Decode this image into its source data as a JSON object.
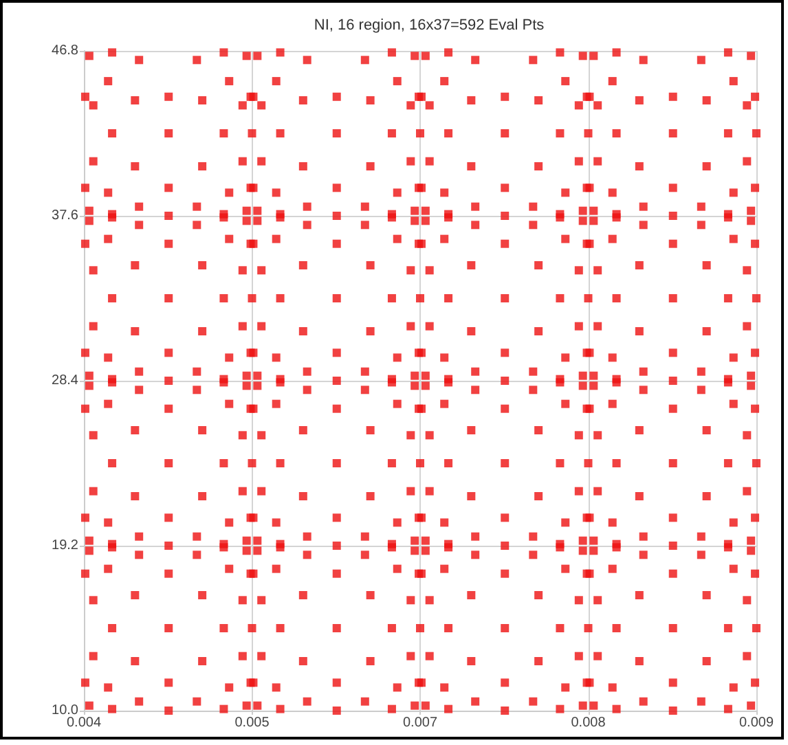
{
  "chart_data": {
    "type": "scatter",
    "title": "NI, 16 region, 16x37=592 Eval Pts",
    "marker": "square",
    "grid": true,
    "xlim": [
      0.004,
      0.009
    ],
    "xticks": [
      0.004,
      {
        "value": 0.00525,
        "label": "0.005"
      },
      {
        "value": 0.0065,
        "label": "0.007"
      },
      {
        "value": 0.00775,
        "label": "0.008"
      },
      0.009
    ],
    "ylim": [
      10,
      46.8
    ],
    "yticks": [
      {
        "value": 10,
        "label": "10.0"
      },
      19.2,
      28.4,
      37.6,
      46.8
    ],
    "series": [
      {
        "color": "#ee1111",
        "x": [
          0.00404,
          0.00521,
          0.00404,
          0.00521,
          0.00421,
          0.00504,
          0.00421,
          0.00504,
          0.00401,
          0.00401,
          0.00524,
          0.00524,
          0.00441,
          0.00484,
          0.00441,
          0.00484,
          0.00407,
          0.00407,
          0.00518,
          0.00518,
          0.00418,
          0.00508,
          0.00418,
          0.00508,
          0.00463,
          0.00463,
          0.00421,
          0.00504,
          0.00438,
          0.00488,
          0.00438,
          0.00488,
          0.00463,
          0.00463,
          0.00525,
          0.00529,
          0.00646,
          0.00529,
          0.00646,
          0.00546,
          0.00629,
          0.00546,
          0.00629,
          0.00526,
          0.00526,
          0.00649,
          0.00649,
          0.00566,
          0.00609,
          0.00566,
          0.00609,
          0.00532,
          0.00532,
          0.00643,
          0.00643,
          0.00543,
          0.00633,
          0.00543,
          0.00633,
          0.00588,
          0.00588,
          0.00546,
          0.00629,
          0.00563,
          0.00613,
          0.00563,
          0.00613,
          0.00588,
          0.00588,
          0.0065,
          0.00654,
          0.00771,
          0.00654,
          0.00771,
          0.00671,
          0.00754,
          0.00671,
          0.00754,
          0.00651,
          0.00651,
          0.00774,
          0.00774,
          0.00691,
          0.00734,
          0.00691,
          0.00734,
          0.00657,
          0.00657,
          0.00768,
          0.00768,
          0.00668,
          0.00758,
          0.00668,
          0.00758,
          0.00713,
          0.00713,
          0.00671,
          0.00754,
          0.00688,
          0.00738,
          0.00688,
          0.00738,
          0.00713,
          0.00713,
          0.00775,
          0.00779,
          0.00896,
          0.00779,
          0.00896,
          0.00796,
          0.00879,
          0.00796,
          0.00879,
          0.00776,
          0.00776,
          0.00899,
          0.00899,
          0.00816,
          0.00859,
          0.00816,
          0.00859,
          0.00782,
          0.00782,
          0.00893,
          0.00893,
          0.00793,
          0.00883,
          0.00793,
          0.00883,
          0.00838,
          0.00838,
          0.00796,
          0.00879,
          0.00813,
          0.00863,
          0.00813,
          0.00863,
          0.00838,
          0.00838,
          0.009,
          0.00404,
          0.00521,
          0.00404,
          0.00521,
          0.00421,
          0.00504,
          0.00421,
          0.00504,
          0.00401,
          0.00401,
          0.00524,
          0.00524,
          0.00441,
          0.00484,
          0.00441,
          0.00484,
          0.00407,
          0.00407,
          0.00518,
          0.00518,
          0.00418,
          0.00508,
          0.00418,
          0.00508,
          0.00463,
          0.00463,
          0.00421,
          0.00504,
          0.00438,
          0.00488,
          0.00438,
          0.00488,
          0.00463,
          0.00463,
          0.00525,
          0.00529,
          0.00646,
          0.00529,
          0.00646,
          0.00546,
          0.00629,
          0.00546,
          0.00629,
          0.00526,
          0.00526,
          0.00649,
          0.00649,
          0.00566,
          0.00609,
          0.00566,
          0.00609,
          0.00532,
          0.00532,
          0.00643,
          0.00643,
          0.00543,
          0.00633,
          0.00543,
          0.00633,
          0.00588,
          0.00588,
          0.00546,
          0.00629,
          0.00563,
          0.00613,
          0.00563,
          0.00613,
          0.00588,
          0.00588,
          0.0065,
          0.00654,
          0.00771,
          0.00654,
          0.00771,
          0.00671,
          0.00754,
          0.00671,
          0.00754,
          0.00651,
          0.00651,
          0.00774,
          0.00774,
          0.00691,
          0.00734,
          0.00691,
          0.00734,
          0.00657,
          0.00657,
          0.00768,
          0.00768,
          0.00668,
          0.00758,
          0.00668,
          0.00758,
          0.00713,
          0.00713,
          0.00671,
          0.00754,
          0.00688,
          0.00738,
          0.00688,
          0.00738,
          0.00713,
          0.00713,
          0.00775,
          0.00779,
          0.00896,
          0.00779,
          0.00896,
          0.00796,
          0.00879,
          0.00796,
          0.00879,
          0.00776,
          0.00776,
          0.00899,
          0.00899,
          0.00816,
          0.00859,
          0.00816,
          0.00859,
          0.00782,
          0.00782,
          0.00893,
          0.00893,
          0.00793,
          0.00883,
          0.00793,
          0.00883,
          0.00838,
          0.00838,
          0.00796,
          0.00879,
          0.00813,
          0.00863,
          0.00813,
          0.00863,
          0.00838,
          0.00838,
          0.009,
          0.00404,
          0.00521,
          0.00404,
          0.00521,
          0.00421,
          0.00504,
          0.00421,
          0.00504,
          0.00401,
          0.00401,
          0.00524,
          0.00524,
          0.00441,
          0.00484,
          0.00441,
          0.00484,
          0.00407,
          0.00407,
          0.00518,
          0.00518,
          0.00418,
          0.00508,
          0.00418,
          0.00508,
          0.00463,
          0.00463,
          0.00421,
          0.00504,
          0.00438,
          0.00488,
          0.00438,
          0.00488,
          0.00463,
          0.00463,
          0.00525,
          0.00529,
          0.00646,
          0.00529,
          0.00646,
          0.00546,
          0.00629,
          0.00546,
          0.00629,
          0.00526,
          0.00526,
          0.00649,
          0.00649,
          0.00566,
          0.00609,
          0.00566,
          0.00609,
          0.00532,
          0.00532,
          0.00643,
          0.00643,
          0.00543,
          0.00633,
          0.00543,
          0.00633,
          0.00588,
          0.00588,
          0.00546,
          0.00629,
          0.00563,
          0.00613,
          0.00563,
          0.00613,
          0.00588,
          0.00588,
          0.0065,
          0.00654,
          0.00771,
          0.00654,
          0.00771,
          0.00671,
          0.00754,
          0.00671,
          0.00754,
          0.00651,
          0.00651,
          0.00774,
          0.00774,
          0.00691,
          0.00734,
          0.00691,
          0.00734,
          0.00657,
          0.00657,
          0.00768,
          0.00768,
          0.00668,
          0.00758,
          0.00668,
          0.00758,
          0.00713,
          0.00713,
          0.00671,
          0.00754,
          0.00688,
          0.00738,
          0.00688,
          0.00738,
          0.00713,
          0.00713,
          0.00775,
          0.00779,
          0.00896,
          0.00779,
          0.00896,
          0.00796,
          0.00879,
          0.00796,
          0.00879,
          0.00776,
          0.00776,
          0.00899,
          0.00899,
          0.00816,
          0.00859,
          0.00816,
          0.00859,
          0.00782,
          0.00782,
          0.00893,
          0.00893,
          0.00793,
          0.00883,
          0.00793,
          0.00883,
          0.00838,
          0.00838,
          0.00796,
          0.00879,
          0.00813,
          0.00863,
          0.00813,
          0.00863,
          0.00838,
          0.00838,
          0.009,
          0.00404,
          0.00521,
          0.00404,
          0.00521,
          0.00421,
          0.00504,
          0.00421,
          0.00504,
          0.00401,
          0.00401,
          0.00524,
          0.00524,
          0.00441,
          0.00484,
          0.00441,
          0.00484,
          0.00407,
          0.00407,
          0.00518,
          0.00518,
          0.00418,
          0.00508,
          0.00418,
          0.00508,
          0.00463,
          0.00463,
          0.00421,
          0.00504,
          0.00438,
          0.00488,
          0.00438,
          0.00488,
          0.00463,
          0.00463,
          0.00525,
          0.00529,
          0.00646,
          0.00529,
          0.00646,
          0.00546,
          0.00629,
          0.00546,
          0.00629,
          0.00526,
          0.00526,
          0.00649,
          0.00649,
          0.00566,
          0.00609,
          0.00566,
          0.00609,
          0.00532,
          0.00532,
          0.00643,
          0.00643,
          0.00543,
          0.00633,
          0.00543,
          0.00633,
          0.00588,
          0.00588,
          0.00546,
          0.00629,
          0.00563,
          0.00613,
          0.00563,
          0.00613,
          0.00588,
          0.00588,
          0.0065,
          0.00654,
          0.00771,
          0.00654,
          0.00771,
          0.00671,
          0.00754,
          0.00671,
          0.00754,
          0.00651,
          0.00651,
          0.00774,
          0.00774,
          0.00691,
          0.00734,
          0.00691,
          0.00734,
          0.00657,
          0.00657,
          0.00768,
          0.00768,
          0.00668,
          0.00758,
          0.00668,
          0.00758,
          0.00713,
          0.00713,
          0.00671,
          0.00754,
          0.00688,
          0.00738,
          0.00688,
          0.00738,
          0.00713,
          0.00713,
          0.00775,
          0.00779,
          0.00896,
          0.00779,
          0.00896,
          0.00796,
          0.00879,
          0.00796,
          0.00879,
          0.00776,
          0.00776,
          0.00899,
          0.00899,
          0.00816,
          0.00859,
          0.00816,
          0.00859,
          0.00782,
          0.00782,
          0.00893,
          0.00893,
          0.00793,
          0.00883,
          0.00793,
          0.00883,
          0.00838,
          0.00838,
          0.00796,
          0.00879,
          0.00813,
          0.00863,
          0.00813,
          0.00863,
          0.00838,
          0.00838,
          0.009
        ],
        "values": [
          10.28,
          10.28,
          18.92,
          18.92,
          10.09,
          10.09,
          19.11,
          19.11,
          11.56,
          17.64,
          11.56,
          17.64,
          10.51,
          10.51,
          18.69,
          18.69,
          13.04,
          16.16,
          13.04,
          16.16,
          11.29,
          11.29,
          17.91,
          17.91,
          11.56,
          17.64,
          14.6,
          14.6,
          12.76,
          12.76,
          16.44,
          16.44,
          14.6,
          10,
          14.6,
          10.28,
          10.28,
          18.92,
          18.92,
          10.09,
          10.09,
          19.11,
          19.11,
          11.56,
          17.64,
          11.56,
          17.64,
          10.51,
          10.51,
          18.69,
          18.69,
          13.04,
          16.16,
          13.04,
          16.16,
          11.29,
          11.29,
          17.91,
          17.91,
          11.56,
          17.64,
          14.6,
          14.6,
          12.76,
          12.76,
          16.44,
          16.44,
          14.6,
          10,
          14.6,
          10.28,
          10.28,
          18.92,
          18.92,
          10.09,
          10.09,
          19.11,
          19.11,
          11.56,
          17.64,
          11.56,
          17.64,
          10.51,
          10.51,
          18.69,
          18.69,
          13.04,
          16.16,
          13.04,
          16.16,
          11.29,
          11.29,
          17.91,
          17.91,
          11.56,
          17.64,
          14.6,
          14.6,
          12.76,
          12.76,
          16.44,
          16.44,
          14.6,
          10,
          14.6,
          10.28,
          10.28,
          18.92,
          18.92,
          10.09,
          10.09,
          19.11,
          19.11,
          11.56,
          17.64,
          11.56,
          17.64,
          10.51,
          10.51,
          18.69,
          18.69,
          13.04,
          16.16,
          13.04,
          16.16,
          11.29,
          11.29,
          17.91,
          17.91,
          11.56,
          17.64,
          14.6,
          14.6,
          12.76,
          12.76,
          16.44,
          16.44,
          14.6,
          10,
          14.6,
          19.48,
          19.48,
          28.12,
          28.12,
          19.29,
          19.29,
          28.31,
          28.31,
          20.76,
          26.84,
          20.76,
          26.84,
          19.71,
          19.71,
          27.89,
          27.89,
          22.24,
          25.36,
          22.24,
          25.36,
          20.49,
          20.49,
          27.11,
          27.11,
          20.76,
          26.84,
          23.8,
          23.8,
          21.96,
          21.96,
          25.64,
          25.64,
          23.8,
          19.2,
          23.8,
          19.48,
          19.48,
          28.12,
          28.12,
          19.29,
          19.29,
          28.31,
          28.31,
          20.76,
          26.84,
          20.76,
          26.84,
          19.71,
          19.71,
          27.89,
          27.89,
          22.24,
          25.36,
          22.24,
          25.36,
          20.49,
          20.49,
          27.11,
          27.11,
          20.76,
          26.84,
          23.8,
          23.8,
          21.96,
          21.96,
          25.64,
          25.64,
          23.8,
          19.2,
          23.8,
          19.48,
          19.48,
          28.12,
          28.12,
          19.29,
          19.29,
          28.31,
          28.31,
          20.76,
          26.84,
          20.76,
          26.84,
          19.71,
          19.71,
          27.89,
          27.89,
          22.24,
          25.36,
          22.24,
          25.36,
          20.49,
          20.49,
          27.11,
          27.11,
          20.76,
          26.84,
          23.8,
          23.8,
          21.96,
          21.96,
          25.64,
          25.64,
          23.8,
          19.2,
          23.8,
          19.48,
          19.48,
          28.12,
          28.12,
          19.29,
          19.29,
          28.31,
          28.31,
          20.76,
          26.84,
          20.76,
          26.84,
          19.71,
          19.71,
          27.89,
          27.89,
          22.24,
          25.36,
          22.24,
          25.36,
          20.49,
          20.49,
          27.11,
          27.11,
          20.76,
          26.84,
          23.8,
          23.8,
          21.96,
          21.96,
          25.64,
          25.64,
          23.8,
          19.2,
          23.8,
          28.68,
          28.68,
          37.32,
          37.32,
          28.49,
          28.49,
          37.51,
          37.51,
          29.96,
          36.04,
          29.96,
          36.04,
          28.91,
          28.91,
          37.09,
          37.09,
          31.44,
          34.56,
          31.44,
          34.56,
          29.69,
          29.69,
          36.31,
          36.31,
          29.96,
          36.04,
          33,
          33,
          31.16,
          31.16,
          34.84,
          34.84,
          33,
          28.4,
          33,
          28.68,
          28.68,
          37.32,
          37.32,
          28.49,
          28.49,
          37.51,
          37.51,
          29.96,
          36.04,
          29.96,
          36.04,
          28.91,
          28.91,
          37.09,
          37.09,
          31.44,
          34.56,
          31.44,
          34.56,
          29.69,
          29.69,
          36.31,
          36.31,
          29.96,
          36.04,
          33,
          33,
          31.16,
          31.16,
          34.84,
          34.84,
          33,
          28.4,
          33,
          28.68,
          28.68,
          37.32,
          37.32,
          28.49,
          28.49,
          37.51,
          37.51,
          29.96,
          36.04,
          29.96,
          36.04,
          28.91,
          28.91,
          37.09,
          37.09,
          31.44,
          34.56,
          31.44,
          34.56,
          29.69,
          29.69,
          36.31,
          36.31,
          29.96,
          36.04,
          33,
          33,
          31.16,
          31.16,
          34.84,
          34.84,
          33,
          28.4,
          33,
          28.68,
          28.68,
          37.32,
          37.32,
          28.49,
          28.49,
          37.51,
          37.51,
          29.96,
          36.04,
          29.96,
          36.04,
          28.91,
          28.91,
          37.09,
          37.09,
          31.44,
          34.56,
          31.44,
          34.56,
          29.69,
          29.69,
          36.31,
          36.31,
          29.96,
          36.04,
          33,
          33,
          31.16,
          31.16,
          34.84,
          34.84,
          33,
          28.4,
          33,
          37.88,
          37.88,
          46.52,
          46.52,
          37.69,
          37.69,
          46.71,
          46.71,
          39.16,
          44.24,
          39.16,
          44.24,
          38.11,
          38.11,
          46.29,
          46.29,
          40.64,
          43.76,
          40.64,
          43.76,
          38.89,
          38.89,
          45.11,
          45.11,
          39.16,
          44.24,
          42.2,
          42.2,
          40.36,
          40.36,
          44.04,
          44.04,
          42.2,
          37.6,
          42.2,
          37.88,
          37.88,
          46.52,
          46.52,
          37.69,
          37.69,
          46.71,
          46.71,
          39.16,
          44.24,
          39.16,
          44.24,
          38.11,
          38.11,
          46.29,
          46.29,
          40.64,
          43.76,
          40.64,
          43.76,
          38.89,
          38.89,
          45.11,
          45.11,
          39.16,
          44.24,
          42.2,
          42.2,
          40.36,
          40.36,
          44.04,
          44.04,
          42.2,
          37.6,
          42.2,
          37.88,
          37.88,
          46.52,
          46.52,
          37.69,
          37.69,
          46.71,
          46.71,
          39.16,
          44.24,
          39.16,
          44.24,
          38.11,
          38.11,
          46.29,
          46.29,
          40.64,
          43.76,
          40.64,
          43.76,
          38.89,
          38.89,
          45.11,
          45.11,
          39.16,
          44.24,
          42.2,
          42.2,
          40.36,
          40.36,
          44.04,
          44.04,
          42.2,
          37.6,
          42.2,
          37.88,
          37.88,
          46.52,
          46.52,
          37.69,
          37.69,
          46.71,
          46.71,
          39.16,
          44.24,
          39.16,
          44.24,
          38.11,
          38.11,
          46.29,
          46.29,
          40.64,
          43.76,
          40.64,
          43.76,
          38.89,
          38.89,
          45.11,
          45.11,
          39.16,
          44.24,
          42.2,
          42.2,
          40.36,
          40.36,
          44.04,
          44.04,
          42.2,
          37.6,
          42.2
        ]
      }
    ]
  }
}
